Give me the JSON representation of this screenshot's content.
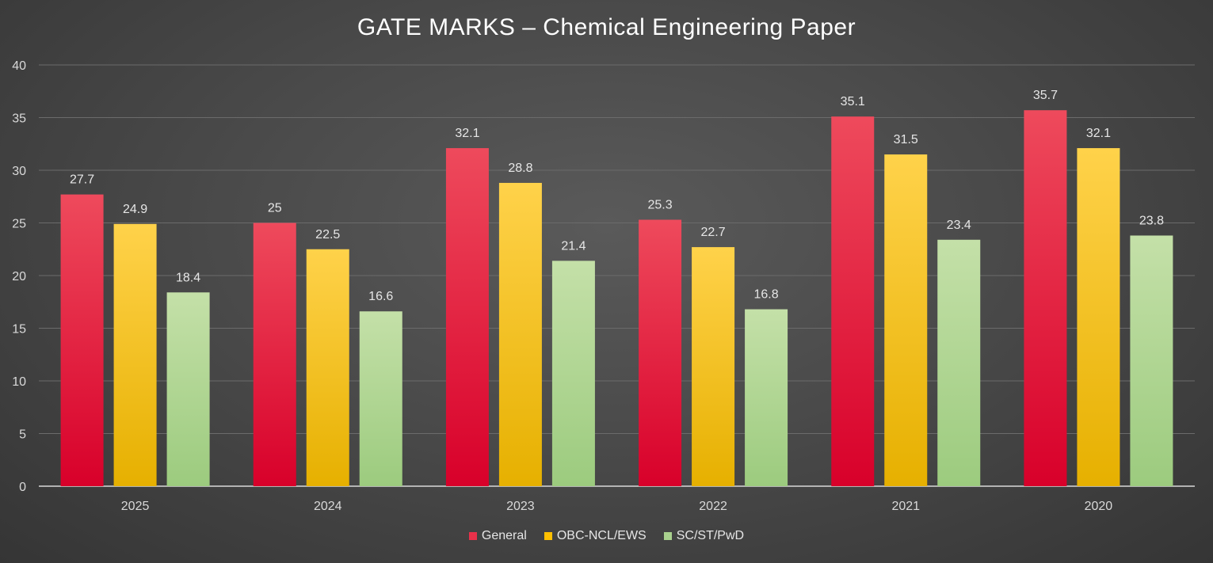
{
  "chart_data": {
    "type": "bar",
    "title": "GATE MARKS – Chemical Engineering Paper",
    "xlabel": "",
    "ylabel": "",
    "ylim": [
      0,
      40
    ],
    "yticks": [
      0,
      5,
      10,
      15,
      20,
      25,
      30,
      35,
      40
    ],
    "grid": true,
    "legend_position": "bottom",
    "categories": [
      "2025",
      "2024",
      "2023",
      "2022",
      "2021",
      "2020"
    ],
    "series": [
      {
        "name": "General",
        "color": "#e8314a",
        "color_top": "#ee4a5c",
        "color_bottom": "#d8002a",
        "values": [
          27.7,
          25,
          32.1,
          25.3,
          35.1,
          35.7
        ]
      },
      {
        "name": "OBC-NCL/EWS",
        "color": "#ffc000",
        "color_top": "#ffd24a",
        "color_bottom": "#e6b000",
        "values": [
          24.9,
          22.5,
          28.8,
          22.7,
          31.5,
          32.1
        ]
      },
      {
        "name": "SC/ST/PwD",
        "color": "#a9d18e",
        "color_top": "#c4e0a8",
        "color_bottom": "#9ccb7e",
        "values": [
          18.4,
          16.6,
          21.4,
          16.8,
          23.4,
          23.8
        ]
      }
    ]
  }
}
